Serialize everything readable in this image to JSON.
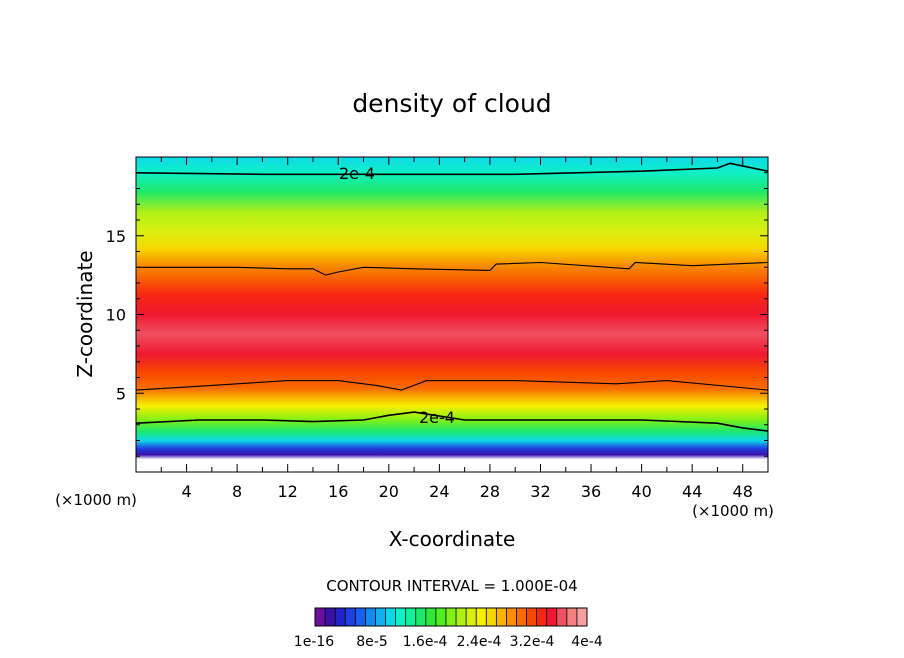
{
  "chart_data": {
    "type": "heatmap",
    "title": "density of cloud",
    "xlabel": "X-coordinate",
    "ylabel": "Z-coordinate",
    "x_unit_left": "(×1000 m)",
    "x_unit_right": "(×1000 m)",
    "xlim": [
      0,
      50
    ],
    "ylim": [
      0,
      20
    ],
    "x_ticks": [
      4,
      8,
      12,
      16,
      20,
      24,
      28,
      32,
      36,
      40,
      44,
      48
    ],
    "y_ticks": [
      5,
      10,
      15
    ],
    "contour_interval_text": "CONTOUR INTERVAL = 1.000E-04",
    "contour_label": "2e-4",
    "contour_label_2": "2e-4",
    "colorbar_labels": [
      "1e-16",
      "8e-5",
      "1.6e-4",
      "2.4e-4",
      "3.2e-4",
      "4e-4"
    ],
    "colorbar_colors": [
      "#6a0fa0",
      "#3a10a8",
      "#2222c8",
      "#1e40e0",
      "#1a60f0",
      "#1488f0",
      "#10b0f0",
      "#0ed8e8",
      "#10f0c8",
      "#14f09a",
      "#1ee86a",
      "#2ee83a",
      "#50f020",
      "#80f018",
      "#b0f018",
      "#d8f010",
      "#f8f000",
      "#f8d800",
      "#f8b400",
      "#f89000",
      "#f86c00",
      "#f84800",
      "#f82810",
      "#f01830",
      "#f05060",
      "#f48080",
      "#f8a0a0"
    ],
    "z_profile": [
      {
        "z": 0.0,
        "v": 0.0
      },
      {
        "z": 0.8,
        "v": 0.0
      },
      {
        "z": 1.1,
        "v": 0.1
      },
      {
        "z": 1.5,
        "v": 0.5
      },
      {
        "z": 2.0,
        "v": 1.0
      },
      {
        "z": 2.6,
        "v": 1.5
      },
      {
        "z": 3.3,
        "v": 2.0
      },
      {
        "z": 4.2,
        "v": 2.4
      },
      {
        "z": 5.3,
        "v": 3.0
      },
      {
        "z": 6.3,
        "v": 3.3
      },
      {
        "z": 7.5,
        "v": 3.55
      },
      {
        "z": 8.8,
        "v": 3.7
      },
      {
        "z": 10.0,
        "v": 3.6
      },
      {
        "z": 11.3,
        "v": 3.35
      },
      {
        "z": 12.5,
        "v": 3.05
      },
      {
        "z": 13.2,
        "v": 2.9
      },
      {
        "z": 14.2,
        "v": 2.6
      },
      {
        "z": 15.3,
        "v": 2.35
      },
      {
        "z": 16.5,
        "v": 2.1
      },
      {
        "z": 17.8,
        "v": 1.6
      },
      {
        "z": 19.0,
        "v": 1.2
      },
      {
        "z": 20.0,
        "v": 1.0
      }
    ],
    "contour_lines": [
      {
        "level": "2e-4",
        "points": [
          [
            0,
            19.0
          ],
          [
            10,
            18.9
          ],
          [
            20,
            18.9
          ],
          [
            30,
            18.9
          ],
          [
            40,
            19.1
          ],
          [
            46,
            19.3
          ],
          [
            47,
            19.6
          ],
          [
            50,
            19.1
          ]
        ]
      },
      {
        "level": "3e-4",
        "points": [
          [
            0,
            13.0
          ],
          [
            8,
            13.0
          ],
          [
            12,
            12.9
          ],
          [
            14,
            12.9
          ],
          [
            15,
            12.5
          ],
          [
            16,
            12.7
          ],
          [
            18,
            13.0
          ],
          [
            22,
            12.9
          ],
          [
            28,
            12.8
          ],
          [
            28.5,
            13.2
          ],
          [
            32,
            13.3
          ],
          [
            39,
            12.9
          ],
          [
            39.5,
            13.3
          ],
          [
            44,
            13.1
          ],
          [
            50,
            13.3
          ]
        ]
      },
      {
        "level": "3e-4",
        "points": [
          [
            0,
            5.2
          ],
          [
            6,
            5.5
          ],
          [
            12,
            5.8
          ],
          [
            16,
            5.8
          ],
          [
            19,
            5.5
          ],
          [
            21,
            5.2
          ],
          [
            23,
            5.8
          ],
          [
            30,
            5.8
          ],
          [
            38,
            5.6
          ],
          [
            42,
            5.8
          ],
          [
            50,
            5.2
          ]
        ]
      },
      {
        "level": "2e-4",
        "points": [
          [
            0,
            3.1
          ],
          [
            5,
            3.3
          ],
          [
            10,
            3.3
          ],
          [
            14,
            3.2
          ],
          [
            18,
            3.3
          ],
          [
            20,
            3.6
          ],
          [
            22,
            3.8
          ],
          [
            26,
            3.3
          ],
          [
            30,
            3.3
          ],
          [
            40,
            3.3
          ],
          [
            46,
            3.1
          ],
          [
            48,
            2.8
          ],
          [
            50,
            2.6
          ]
        ]
      }
    ]
  }
}
